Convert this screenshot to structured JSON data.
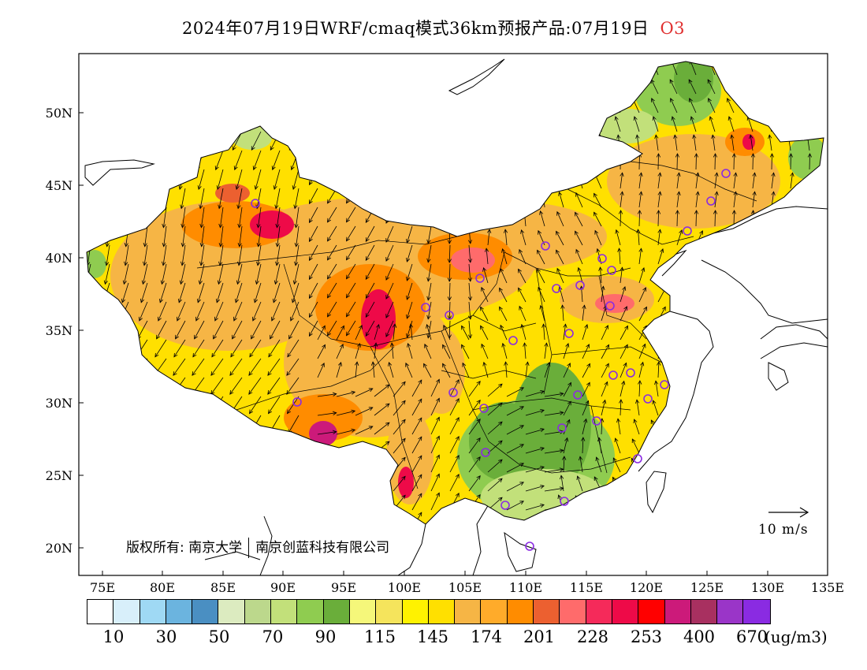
{
  "title": {
    "text": "2024年07月19日WRF/cmaq模式36km预报产品:07月19日",
    "highlight": "O3",
    "highlight_color": "#e03030"
  },
  "axes": {
    "lat_labels": [
      "50N",
      "45N",
      "40N",
      "35N",
      "30N",
      "25N",
      "20N"
    ],
    "lon_labels": [
      "75E",
      "80E",
      "85E",
      "90E",
      "95E",
      "100E",
      "105E",
      "110E",
      "115E",
      "120E",
      "125E",
      "130E",
      "135E"
    ]
  },
  "colorbar": {
    "colors": [
      "#ffffff",
      "#d8effa",
      "#9fd9f4",
      "#6bb4df",
      "#4a8fc2",
      "#dcebc0",
      "#bcd88c",
      "#c2e07a",
      "#8fcc50",
      "#6aae3a",
      "#f5f77a",
      "#f5e45c",
      "#fff200",
      "#ffe000",
      "#f6b545",
      "#ffab2a",
      "#ff8c00",
      "#ec6030",
      "#ff6b6b",
      "#f52a5a",
      "#ee0a48",
      "#ff0000",
      "#cc1a7a",
      "#a83060",
      "#9a35c8",
      "#8a2be2"
    ],
    "labels": [
      "10",
      "30",
      "50",
      "70",
      "90",
      "115",
      "145",
      "174",
      "201",
      "228",
      "253",
      "400",
      "670"
    ],
    "unit": "(ug/m3)"
  },
  "scale": {
    "label": "10  m/s"
  },
  "copyright": {
    "org1": "版权所有: 南京大学",
    "org2": "南京创蓝科技有限公司"
  },
  "map_colors": {
    "base": "#ffe000",
    "orange": "#f6b545",
    "deep_orange": "#ff8c00",
    "red": "#ee0a48",
    "magenta": "#cc1a7a",
    "green": "#8fcc50",
    "dark_green": "#6aae3a",
    "light_green": "#c2e07a",
    "station_marker": "#8a2be2"
  }
}
